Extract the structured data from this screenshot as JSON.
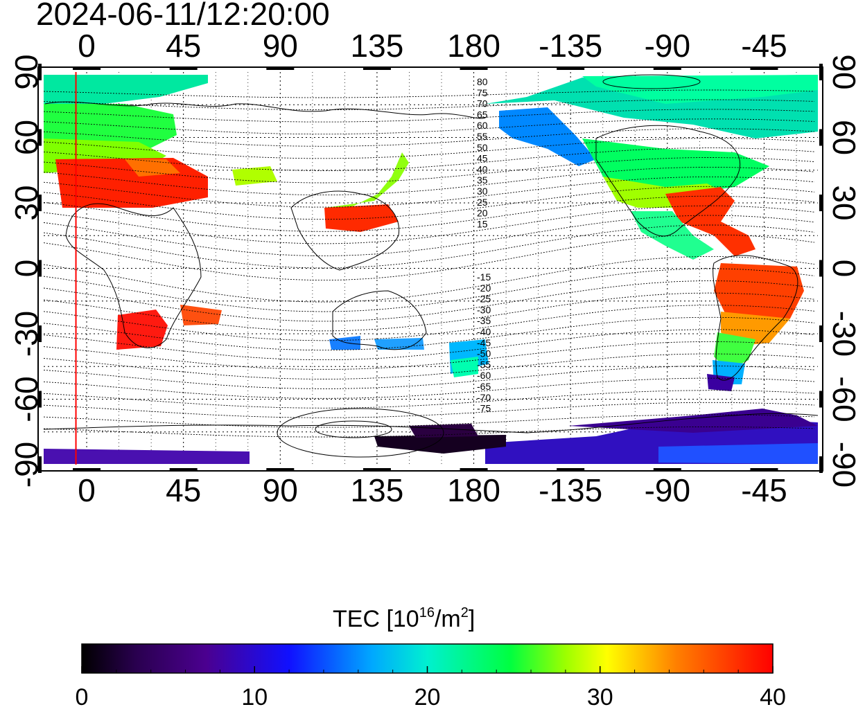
{
  "title": "2024-06-11/12:20:00",
  "map": {
    "top_lon_ticks": [
      "0",
      "45",
      "90",
      "135",
      "180",
      "-135",
      "-90",
      "-45"
    ],
    "bottom_lon_ticks": [
      "0",
      "45",
      "90",
      "135",
      "180",
      "-135",
      "-90",
      "-45"
    ],
    "left_lat_ticks": [
      "90",
      "60",
      "30",
      "0",
      "-30",
      "-60",
      "-90"
    ],
    "right_lat_ticks": [
      "90",
      "60",
      "30",
      "0",
      "-30",
      "-60",
      "-90"
    ],
    "contour_labels_north": [
      "80",
      "75",
      "70",
      "65",
      "60",
      "55",
      "50",
      "45",
      "40",
      "35",
      "30",
      "25",
      "20",
      "15"
    ],
    "contour_labels_south": [
      "-15",
      "-20",
      "-25",
      "-30",
      "-35",
      "-40",
      "-45",
      "-50",
      "-55",
      "-60",
      "-65",
      "-70",
      "-75"
    ],
    "marker_longitude": -5
  },
  "colorbar": {
    "label": "TEC [10",
    "label_sup": "16",
    "label_unit": "/m",
    "label_sup2": "2",
    "label_close": "]",
    "ticks": [
      "0",
      "10",
      "20",
      "30",
      "40"
    ],
    "min": 0,
    "max": 40
  },
  "colors": {
    "marker_line": "#ff0000",
    "frame": "#000000"
  }
}
